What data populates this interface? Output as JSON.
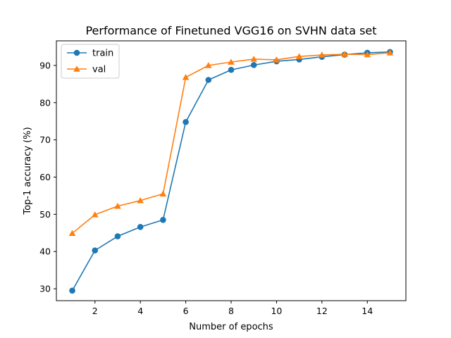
{
  "chart_data": {
    "type": "line",
    "title": "Performance of Finetuned VGG16 on SVHN data set",
    "xlabel": "Number of epochs",
    "ylabel": "Top-1 accuracy (%)",
    "xlim": [
      0.3,
      15.7
    ],
    "ylim": [
      26.8,
      96.6
    ],
    "xticks": [
      2,
      4,
      6,
      8,
      10,
      12,
      14
    ],
    "yticks": [
      30,
      40,
      50,
      60,
      70,
      80,
      90
    ],
    "grid": false,
    "legend_position": "top-left",
    "x": [
      1,
      2,
      3,
      4,
      5,
      6,
      7,
      8,
      9,
      10,
      11,
      12,
      13,
      14,
      15
    ],
    "series": [
      {
        "name": "train",
        "marker": "circle",
        "color": "#1f77b4",
        "values": [
          29.5,
          40.3,
          44.1,
          46.6,
          48.5,
          74.8,
          86.1,
          88.8,
          90.1,
          91.1,
          91.6,
          92.3,
          92.9,
          93.4,
          93.6
        ]
      },
      {
        "name": "val",
        "marker": "triangle",
        "color": "#ff7f0e",
        "values": [
          44.9,
          49.9,
          52.2,
          53.7,
          55.5,
          86.8,
          90.0,
          90.9,
          91.7,
          91.5,
          92.4,
          92.8,
          93.0,
          92.9,
          93.4
        ]
      }
    ]
  }
}
